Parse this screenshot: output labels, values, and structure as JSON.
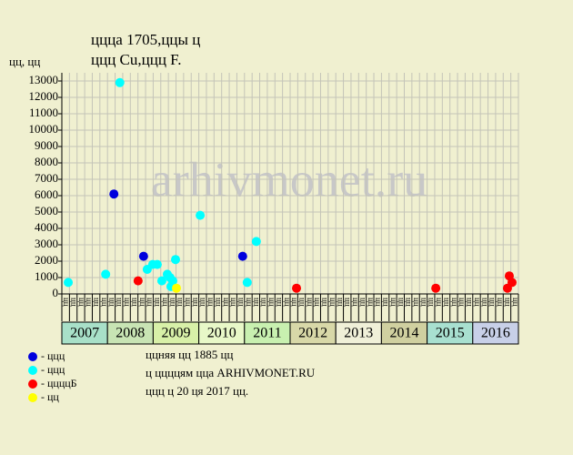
{
  "chart_data": {
    "type": "scatter",
    "title_lines": [
      "ццца 1705,ццы ц",
      "ццц Cu,ццц F."
    ],
    "y_label": "цц, цц",
    "watermark": "arhivmonet.ru",
    "xlim": [
      2007,
      2017
    ],
    "ylim": [
      0,
      13500
    ],
    "yticks": [
      0,
      1000,
      2000,
      3000,
      4000,
      5000,
      6000,
      7000,
      8000,
      9000,
      10000,
      11000,
      12000,
      13000
    ],
    "grid": true,
    "years": [
      "2007",
      "2008",
      "2009",
      "2010",
      "2011",
      "2012",
      "2013",
      "2014",
      "2015",
      "2016"
    ],
    "year_colors": [
      "#a8e0c8",
      "#c8e4b4",
      "#d8f0a8",
      "#e8f8c8",
      "#c8f0b0",
      "#d8d8a8",
      "#f0f0d8",
      "#d0d0a0",
      "#a8e0d0",
      "#c8d0e8"
    ],
    "column_labels": [
      "цц",
      "цц",
      "цц",
      "цц",
      "цц",
      "цц",
      "цц",
      "цц",
      "цц",
      "цц",
      "цц",
      "цц",
      "цц",
      "цц",
      "цц",
      "цц",
      "цц",
      "цц",
      "цц",
      "цц",
      "цц",
      "цц",
      "цц",
      "цц",
      "цц",
      "цц",
      "цц",
      "цц",
      "цц",
      "цц",
      "цц",
      "цц",
      "цц",
      "цц",
      "цц",
      "цц",
      "цц",
      "цц",
      "цц",
      "цц",
      "цц",
      "цц",
      "цц",
      "цц",
      "цц",
      "цц",
      "цц",
      "цц",
      "цц",
      "цц",
      "цц",
      "цц",
      "цц",
      "цц",
      "цц",
      "цц",
      "цц",
      "цц",
      "цц",
      "цц"
    ],
    "series": [
      {
        "name": "- ццц",
        "color": "#0000dd",
        "x": [
          2008.14,
          2008.79,
          2010.96
        ],
        "values": [
          6100,
          2300,
          2300
        ]
      },
      {
        "name": "- ццц",
        "color": "#00ffff",
        "x": [
          2007.14,
          2007.96,
          2008.27,
          2008.87,
          2008.99,
          2009.09,
          2009.19,
          2009.31,
          2009.37,
          2009.39,
          2009.43,
          2009.49,
          2010.03,
          2011.06,
          2011.26
        ],
        "values": [
          700,
          1200,
          12900,
          1500,
          1800,
          1800,
          800,
          1200,
          1000,
          450,
          800,
          2100,
          4800,
          700,
          3200
        ]
      },
      {
        "name": "- ццццБ",
        "color": "#ff0000",
        "x": [
          2008.67,
          2012.14,
          2015.19,
          2016.8,
          2016.86,
          2016.76
        ],
        "values": [
          800,
          350,
          350,
          1100,
          700,
          350
        ]
      },
      {
        "name": "- цц",
        "color": "#ffff00",
        "x": [
          2009.51
        ],
        "values": [
          350
        ]
      }
    ],
    "notes": [
      "ццняя цц 1885 цц",
      "ц ццццям цца ARHIVMONET.RU",
      "ццц ц 20 ця 2017 цц."
    ]
  }
}
